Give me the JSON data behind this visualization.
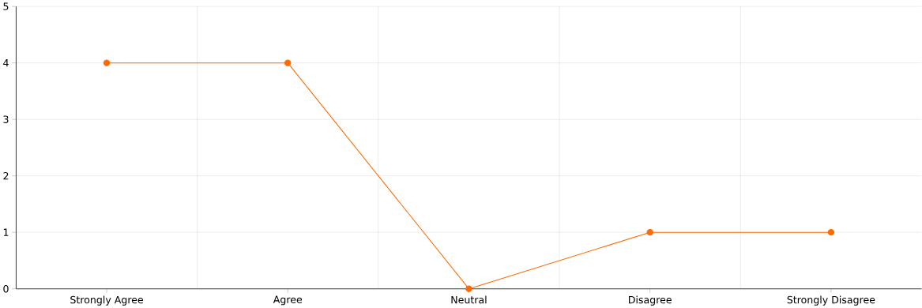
{
  "chart_data": {
    "type": "line",
    "categories": [
      "Strongly Agree",
      "Agree",
      "Neutral",
      "Disagree",
      "Strongly Disagree"
    ],
    "series": [
      {
        "color": "#ff6a00",
        "values": [
          4,
          4,
          0,
          1,
          1
        ]
      }
    ],
    "ylim": [
      0,
      5
    ],
    "yticks": [
      0,
      1,
      2,
      3,
      4,
      5
    ],
    "grid": true,
    "marker": "circle",
    "line_style": "solid"
  }
}
